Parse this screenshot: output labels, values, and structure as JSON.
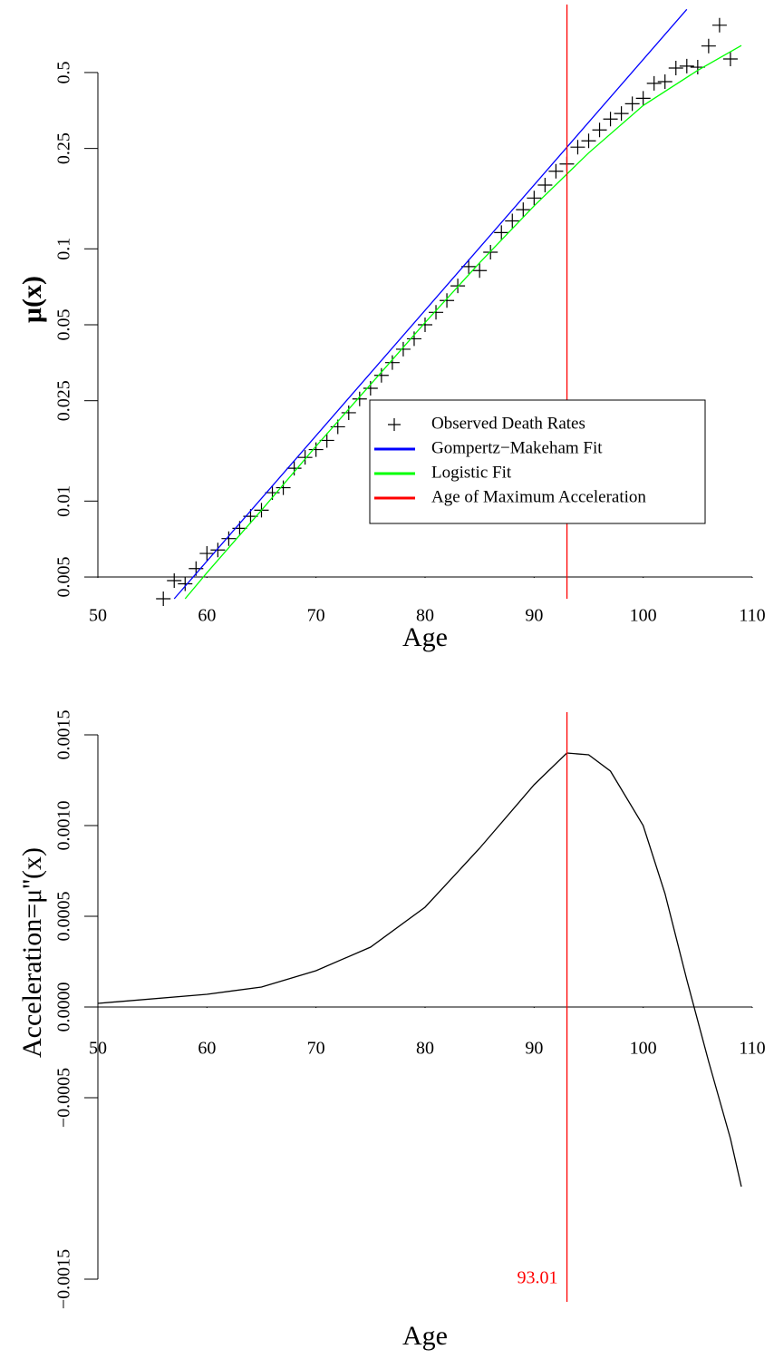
{
  "chart_data": [
    {
      "type": "line",
      "ylabel": "μ(x)",
      "xlabel": "Age",
      "log_y": true,
      "xlim": [
        50,
        110
      ],
      "xticks": [
        50,
        60,
        70,
        80,
        90,
        100,
        110
      ],
      "ylim": [
        0.0041,
        0.93
      ],
      "yticks": [
        0.005,
        0.01,
        0.025,
        0.05,
        0.1,
        0.25,
        0.5
      ],
      "legend": "center-right",
      "series": [
        {
          "name": "Observed Death Rates",
          "color": "#000000",
          "mode": "markers",
          "x": [
            56,
            57,
            58,
            59,
            60,
            61,
            62,
            63,
            64,
            65,
            66,
            67,
            68,
            69,
            70,
            71,
            72,
            73,
            74,
            75,
            76,
            77,
            78,
            79,
            80,
            81,
            82,
            83,
            84,
            85,
            86,
            87,
            88,
            89,
            90,
            91,
            92,
            93,
            94,
            95,
            96,
            97,
            98,
            99,
            100,
            101,
            102,
            103,
            104,
            105,
            106,
            107,
            108
          ],
          "values": [
            0.0041,
            0.00484,
            0.0047,
            0.0054,
            0.0062,
            0.0064,
            0.0071,
            0.0078,
            0.0087,
            0.0092,
            0.0108,
            0.0113,
            0.0135,
            0.0149,
            0.016,
            0.0174,
            0.0197,
            0.0224,
            0.0254,
            0.028,
            0.0315,
            0.0354,
            0.04,
            0.044,
            0.05,
            0.056,
            0.0624,
            0.0713,
            0.085,
            0.082,
            0.097,
            0.116,
            0.129,
            0.143,
            0.159,
            0.179,
            0.203,
            0.217,
            0.253,
            0.268,
            0.296,
            0.327,
            0.344,
            0.376,
            0.395,
            0.453,
            0.46,
            0.521,
            0.53,
            0.525,
            0.637,
            0.77,
            0.566
          ]
        },
        {
          "name": "Gompertz−Makeham Fit",
          "color": "#0000ff",
          "mode": "line",
          "x": [
            57,
            104
          ],
          "values": [
            0.0041,
            0.89
          ]
        },
        {
          "name": "Logistic Fit",
          "color": "#00ff00",
          "mode": "line",
          "x": [
            58,
            60,
            65,
            70,
            75,
            80,
            85,
            90,
            95,
            100,
            105,
            109
          ],
          "values": [
            0.0041,
            0.0052,
            0.0092,
            0.0165,
            0.029,
            0.051,
            0.088,
            0.148,
            0.24,
            0.37,
            0.51,
            0.64
          ]
        }
      ],
      "vline": {
        "x": 93.01,
        "name": "Age of Maximum Acceleration",
        "color": "#ff0000"
      }
    },
    {
      "type": "line",
      "ylabel": "Acceleration=μ''(x)",
      "xlabel": "Age",
      "log_y": false,
      "xlim": [
        50,
        110
      ],
      "xticks": [
        50,
        60,
        70,
        80,
        90,
        100,
        110
      ],
      "ylim": [
        -0.001625,
        0.001625
      ],
      "yticks": [
        {
          "value": 0.0015,
          "label": "0.0015"
        },
        {
          "value": 0.001,
          "label": "0.0010"
        },
        {
          "value": 0.0005,
          "label": "0.0005"
        },
        {
          "value": 0,
          "label": "0.0000"
        },
        {
          "value": -0.0005,
          "label": "−0.0005"
        },
        {
          "value": -0.0015,
          "label": "−0.0015"
        }
      ],
      "series": [
        {
          "color": "#000000",
          "mode": "line",
          "x": [
            50,
            60,
            65,
            70,
            75,
            80,
            85,
            90,
            93,
            95,
            97,
            100,
            102,
            104,
            106,
            108,
            109
          ],
          "values": [
            2e-05,
            7e-05,
            0.00011,
            0.0002,
            0.00033,
            0.00055,
            0.000875,
            0.001225,
            0.0014,
            0.00139,
            0.0013,
            0.001,
            0.000625,
            0.00015,
            -0.0003,
            -0.000725,
            -0.00099
          ]
        }
      ],
      "vline": {
        "x": 93.01,
        "color": "#ff0000"
      }
    }
  ]
}
